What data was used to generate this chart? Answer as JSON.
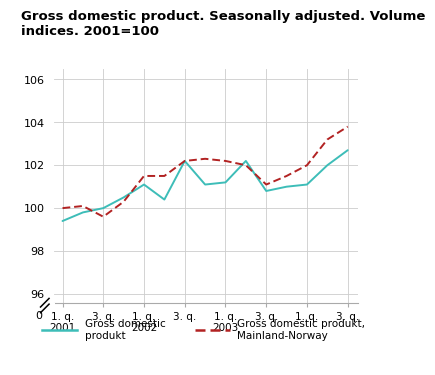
{
  "title": "Gross domestic product. Seasonally adjusted. Volume\nindices. 2001=100",
  "title_fontsize": 9.5,
  "gdp_values": [
    99.4,
    99.8,
    100.0,
    100.5,
    101.1,
    100.4,
    102.2,
    101.1,
    101.2,
    102.2,
    100.8,
    101.0,
    101.1,
    102.0,
    102.7
  ],
  "mainland_values": [
    100.0,
    100.1,
    99.6,
    100.3,
    101.5,
    101.5,
    102.2,
    102.3,
    102.2,
    102.0,
    101.1,
    101.5,
    102.0,
    103.2,
    103.8
  ],
  "gdp_color": "#3dbdb8",
  "mainland_color": "#b22222",
  "bg_color": "#ffffff",
  "grid_color": "#cccccc",
  "legend_gdp": "Gross domestic\nprodukt",
  "legend_mainland": "Gross domestic produkt,\nMainland-Norway"
}
